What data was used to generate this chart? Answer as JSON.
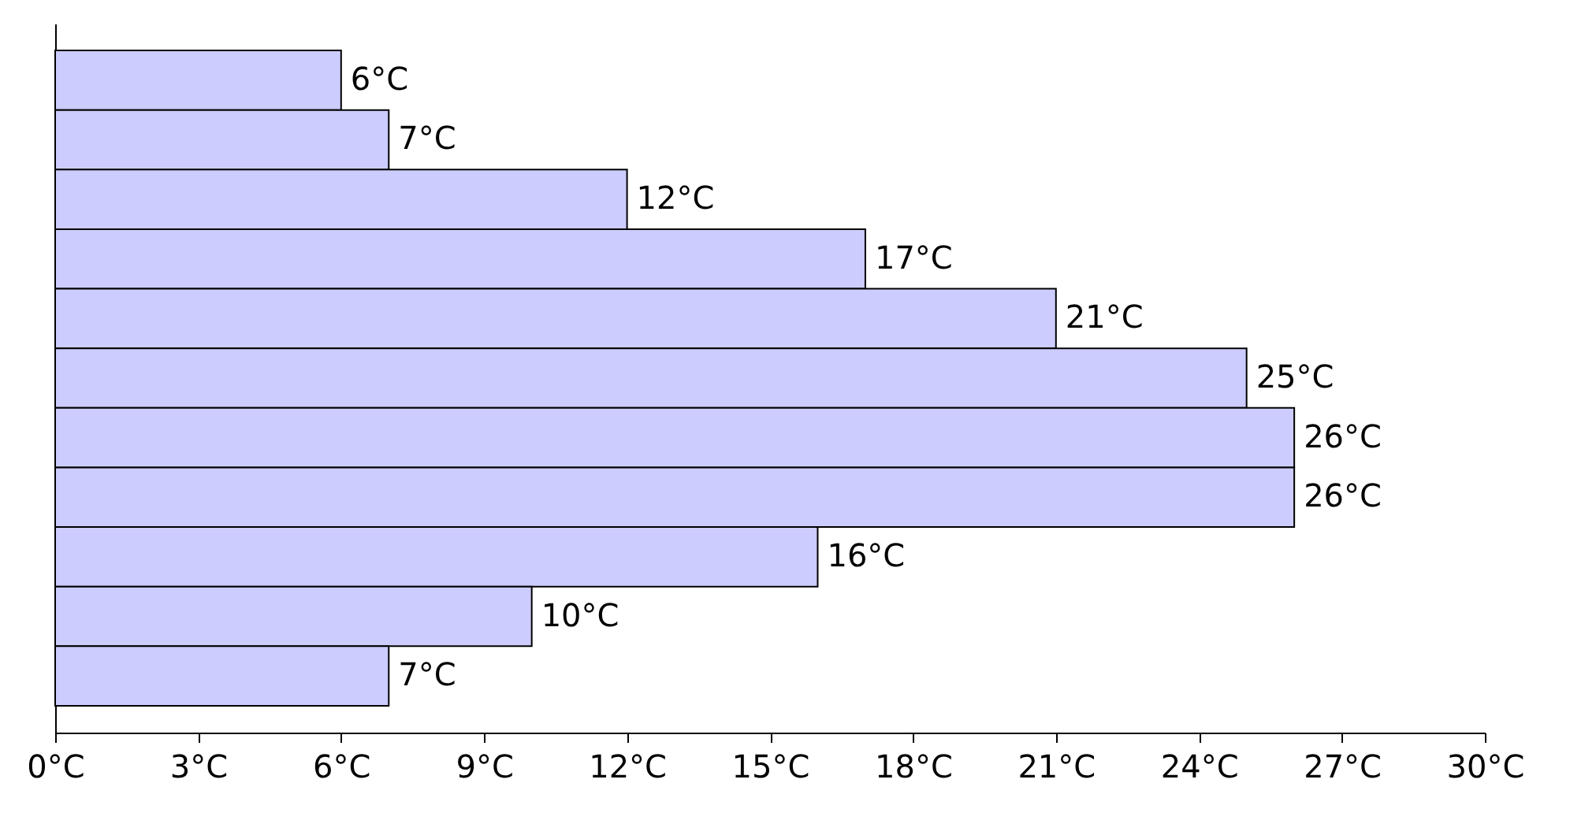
{
  "chart_data": {
    "type": "bar",
    "orientation": "horizontal",
    "categories": [
      null,
      null,
      null,
      null,
      null,
      null,
      null,
      null,
      null,
      null,
      null
    ],
    "values": [
      6,
      7,
      12,
      17,
      21,
      25,
      26,
      26,
      16,
      10,
      7
    ],
    "value_labels": [
      "6°C",
      "7°C",
      "12°C",
      "17°C",
      "21°C",
      "25°C",
      "26°C",
      "26°C",
      "16°C",
      "10°C",
      "7°C"
    ],
    "color": "#ccccff",
    "xlim": [
      0,
      30
    ],
    "xticks": [
      {
        "value": 0,
        "label": "0°C"
      },
      {
        "value": 3,
        "label": "3°C"
      },
      {
        "value": 6,
        "label": "6°C"
      },
      {
        "value": 9,
        "label": "9°C"
      },
      {
        "value": 12,
        "label": "12°C"
      },
      {
        "value": 15,
        "label": "15°C"
      },
      {
        "value": 18,
        "label": "18°C"
      },
      {
        "value": 21,
        "label": "21°C"
      },
      {
        "value": 24,
        "label": "24°C"
      },
      {
        "value": 27,
        "label": "27°C"
      },
      {
        "value": 30,
        "label": "30°C"
      }
    ],
    "grid": false
  }
}
